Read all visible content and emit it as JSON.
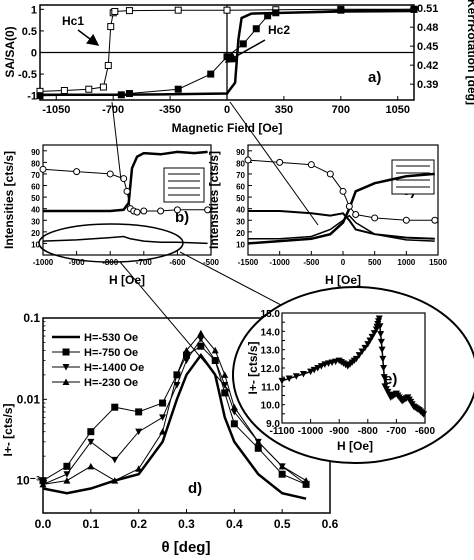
{
  "chart_data": [
    {
      "id": "a",
      "type": "line",
      "panel_label": "a)",
      "xlabel": "Magnetic Field [Oe]",
      "ylabel": "SA/SA(0)",
      "y2label": "KerrRotation [deg]",
      "xlim": [
        -1150,
        1150
      ],
      "ylim": [
        -1.1,
        1.1
      ],
      "y2lim": [
        0.365,
        0.515
      ],
      "xticks": [
        -1050,
        -700,
        -350,
        0,
        350,
        700,
        1050
      ],
      "yticks": [
        -1.0,
        -0.5,
        0.0,
        0.5,
        1.0
      ],
      "y2ticks": [
        0.39,
        0.42,
        0.45,
        0.48,
        0.51
      ],
      "annotations": [
        "Hc1",
        "Hc2"
      ],
      "series": [
        {
          "x": [
            -1150,
            -1000,
            -850,
            -760,
            -730,
            -715,
            -700,
            -690,
            -600,
            -300,
            0,
            300,
            700,
            1150
          ],
          "y": [
            -0.9,
            -0.88,
            -0.85,
            -0.8,
            -0.3,
            0.6,
            0.92,
            0.95,
            0.97,
            0.98,
            0.98,
            0.99,
            1.0,
            1.0
          ]
        },
        {
          "x": [
            1150,
            700,
            300,
            250,
            180,
            100,
            0,
            -100,
            -300,
            -600,
            -650,
            -1150
          ],
          "y": [
            1.0,
            0.98,
            0.92,
            0.85,
            0.55,
            0.2,
            -0.1,
            -0.5,
            -0.85,
            -0.95,
            -0.98,
            -1.0
          ]
        },
        {
          "x": [
            -1150,
            -700,
            -400,
            0,
            50,
            70,
            90,
            150,
            700,
            1150
          ],
          "y": [
            -0.98,
            -0.98,
            -0.97,
            -0.95,
            -0.7,
            0.3,
            0.8,
            0.9,
            0.95,
            0.96
          ]
        }
      ]
    },
    {
      "id": "b",
      "type": "line",
      "panel_label": "b)",
      "xlabel": "H [Oe]",
      "ylabel": "Intensities [cts/s]",
      "xlim": [
        -1000,
        -500
      ],
      "ylim": [
        0,
        95
      ],
      "xticks": [
        -1000,
        -900,
        -800,
        -700,
        -600,
        -500
      ],
      "yticks": [
        10,
        20,
        30,
        40,
        50,
        60,
        70,
        80,
        90
      ],
      "series": [
        {
          "x": [
            -1000,
            -900,
            -800,
            -760,
            -745,
            -735,
            -720,
            -700,
            -650,
            -600,
            -550,
            -510
          ],
          "y": [
            38,
            38,
            38,
            39,
            45,
            75,
            85,
            88,
            87,
            89,
            88,
            89
          ]
        },
        {
          "x": [
            -1000,
            -900,
            -800,
            -760,
            -750,
            -740,
            -730,
            -720,
            -700,
            -650,
            -600,
            -510
          ],
          "y": [
            74,
            72,
            70,
            66,
            55,
            40,
            38,
            37,
            38,
            38,
            39,
            39
          ]
        },
        {
          "x": [
            -1000,
            -900,
            -850,
            -800,
            -760,
            -740,
            -700,
            -650,
            -600,
            -510
          ],
          "y": [
            12,
            13,
            14,
            15,
            16,
            14,
            12,
            11,
            11,
            10
          ]
        }
      ]
    },
    {
      "id": "c",
      "type": "line",
      "panel_label": "c)",
      "xlabel": "H [Oe]",
      "ylabel": "Intensities [cts/s]",
      "xlim": [
        -1500,
        1500
      ],
      "ylim": [
        0,
        95
      ],
      "xticks": [
        -1500,
        -1000,
        -500,
        0,
        500,
        1000,
        1500
      ],
      "yticks": [
        10,
        20,
        30,
        40,
        50,
        60,
        70,
        80,
        90
      ],
      "series": [
        {
          "x": [
            -1500,
            -1000,
            -500,
            -200,
            0,
            100,
            200,
            500,
            1000,
            1450
          ],
          "y": [
            10,
            12,
            14,
            18,
            28,
            40,
            55,
            62,
            68,
            70
          ]
        },
        {
          "x": [
            -1500,
            -1000,
            -500,
            -200,
            0,
            100,
            200,
            500,
            1000,
            1450
          ],
          "y": [
            82,
            80,
            78,
            70,
            55,
            42,
            35,
            32,
            30,
            30
          ]
        },
        {
          "x": [
            -1500,
            -1000,
            -500,
            -200,
            0,
            100,
            200,
            500,
            1000,
            1450
          ],
          "y": [
            38,
            38,
            36,
            34,
            36,
            30,
            22,
            18,
            15,
            14
          ]
        },
        {
          "x": [
            -1500,
            -1000,
            -500,
            -200,
            0,
            100,
            200,
            500,
            1000,
            1450
          ],
          "y": [
            14,
            14,
            16,
            22,
            30,
            34,
            28,
            18,
            13,
            12
          ]
        }
      ]
    },
    {
      "id": "d",
      "type": "line",
      "panel_label": "d)",
      "xlabel": "θ [deg]",
      "ylabel": "I+- [cts/s]",
      "log_y": true,
      "xlim": [
        0.0,
        0.6
      ],
      "ylim": [
        0.0004,
        0.1
      ],
      "xticks": [
        "0.0",
        "0.1",
        "0.2",
        "0.3",
        "0.4",
        "0.5",
        "0.6"
      ],
      "yticks": [
        "10⁻³",
        "0.01",
        "0.1"
      ],
      "legend_position": "top-left",
      "series": [
        {
          "name": "H=-530 Oe",
          "marker": "none",
          "x": [
            0.0,
            0.05,
            0.1,
            0.15,
            0.2,
            0.25,
            0.28,
            0.3,
            0.33,
            0.36,
            0.38,
            0.4,
            0.45,
            0.5,
            0.55
          ],
          "y": [
            0.0008,
            0.0007,
            0.0008,
            0.001,
            0.0012,
            0.003,
            0.01,
            0.02,
            0.035,
            0.02,
            0.006,
            0.003,
            0.0012,
            0.0007,
            0.0006
          ]
        },
        {
          "name": "H=-750 Oe",
          "marker": "square",
          "x": [
            0.0,
            0.05,
            0.1,
            0.15,
            0.2,
            0.25,
            0.28,
            0.3,
            0.33,
            0.36,
            0.38,
            0.4,
            0.45,
            0.5,
            0.55
          ],
          "y": [
            0.001,
            0.0015,
            0.004,
            0.008,
            0.007,
            0.009,
            0.02,
            0.035,
            0.045,
            0.03,
            0.012,
            0.005,
            0.0025,
            0.0012,
            0.0009
          ]
        },
        {
          "name": "H=-1400 Oe",
          "marker": "triangle-down",
          "x": [
            0.0,
            0.05,
            0.1,
            0.15,
            0.2,
            0.25,
            0.28,
            0.3,
            0.33,
            0.36,
            0.38,
            0.4,
            0.45,
            0.5,
            0.55
          ],
          "y": [
            0.0009,
            0.0012,
            0.003,
            0.0018,
            0.004,
            0.006,
            0.015,
            0.03,
            0.055,
            0.03,
            0.015,
            0.007,
            0.003,
            0.0015,
            0.0009
          ]
        },
        {
          "name": "H=-230 Oe",
          "marker": "triangle-up",
          "x": [
            0.0,
            0.05,
            0.1,
            0.15,
            0.2,
            0.25,
            0.28,
            0.3,
            0.33,
            0.36,
            0.38,
            0.4,
            0.45,
            0.5,
            0.55
          ],
          "y": [
            0.0009,
            0.001,
            0.0015,
            0.001,
            0.0014,
            0.004,
            0.02,
            0.04,
            0.065,
            0.04,
            0.02,
            0.008,
            0.003,
            0.0015,
            0.001
          ]
        }
      ]
    },
    {
      "id": "e",
      "type": "line",
      "panel_label": "e)",
      "xlabel": "H [Oe]",
      "ylabel": "I+- [cts/s]",
      "xlim": [
        -1100,
        -600
      ],
      "ylim": [
        9,
        15
      ],
      "xticks": [
        -1100,
        -1000,
        -900,
        -800,
        -700,
        -600
      ],
      "yticks": [
        "9.0",
        "9.5",
        "10.0",
        "10.5",
        "11.0",
        "11.5",
        "12.0",
        "12.5",
        "13.0",
        "13.5",
        "14.0",
        "14.5",
        "15.0"
      ],
      "series": [
        {
          "x": [
            -1100,
            -1000,
            -950,
            -900,
            -870,
            -840,
            -800,
            -770,
            -760,
            -750,
            -740,
            -720,
            -700,
            -680,
            -660,
            -640,
            -620,
            -600
          ],
          "y": [
            11.3,
            11.8,
            12.2,
            12.4,
            12.1,
            12.5,
            13.3,
            14.1,
            14.7,
            13.0,
            11.0,
            10.4,
            10.6,
            10.2,
            10.4,
            9.9,
            9.7,
            9.4
          ]
        }
      ]
    }
  ]
}
